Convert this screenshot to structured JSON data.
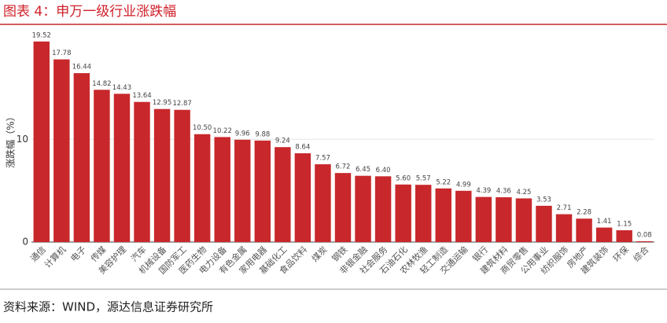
{
  "header": {
    "title": "图表 4：申万一级行业涨跌幅"
  },
  "chart_data": {
    "type": "bar",
    "y_label": "涨跌幅（%）",
    "categories": [
      "通信",
      "计算机",
      "电子",
      "传媒",
      "美容护理",
      "汽车",
      "机械设备",
      "国防军工",
      "医药生物",
      "电力设备",
      "有色金属",
      "家用电器",
      "基础化工",
      "食品饮料",
      "煤炭",
      "钢铁",
      "非银金融",
      "社会服务",
      "石油石化",
      "农林牧渔",
      "轻工制造",
      "交通运输",
      "银行",
      "建筑材料",
      "商贸零售",
      "公用事业",
      "纺织服饰",
      "房地产",
      "建筑装饰",
      "环保",
      "综合"
    ],
    "values": [
      19.52,
      17.78,
      16.44,
      14.82,
      14.43,
      13.64,
      12.95,
      12.87,
      10.5,
      10.22,
      9.96,
      9.88,
      9.24,
      8.64,
      7.57,
      6.72,
      6.45,
      6.4,
      5.6,
      5.57,
      5.22,
      4.99,
      4.39,
      4.36,
      4.25,
      3.53,
      2.71,
      2.28,
      1.41,
      1.15,
      0.08
    ],
    "value_labels": [
      "19.52",
      "17.78",
      "16.44",
      "14.82",
      "14.43",
      "13.64",
      "12.95",
      "12.87",
      "10.50",
      "10.22",
      "9.96",
      "9.88",
      "9.24",
      "8.64",
      "7.57",
      "6.72",
      "6.45",
      "6.40",
      "5.60",
      "5.57",
      "5.22",
      "4.99",
      "4.39",
      "4.36",
      "4.25",
      "3.53",
      "2.71",
      "2.28",
      "1.41",
      "1.15",
      "0.08"
    ],
    "color": "#c8282b",
    "ylim": [
      0,
      20.5
    ],
    "yticks": [
      0,
      10
    ],
    "grid": true
  },
  "footer": {
    "source": "资料来源：WIND，源达信息证券研究所"
  }
}
